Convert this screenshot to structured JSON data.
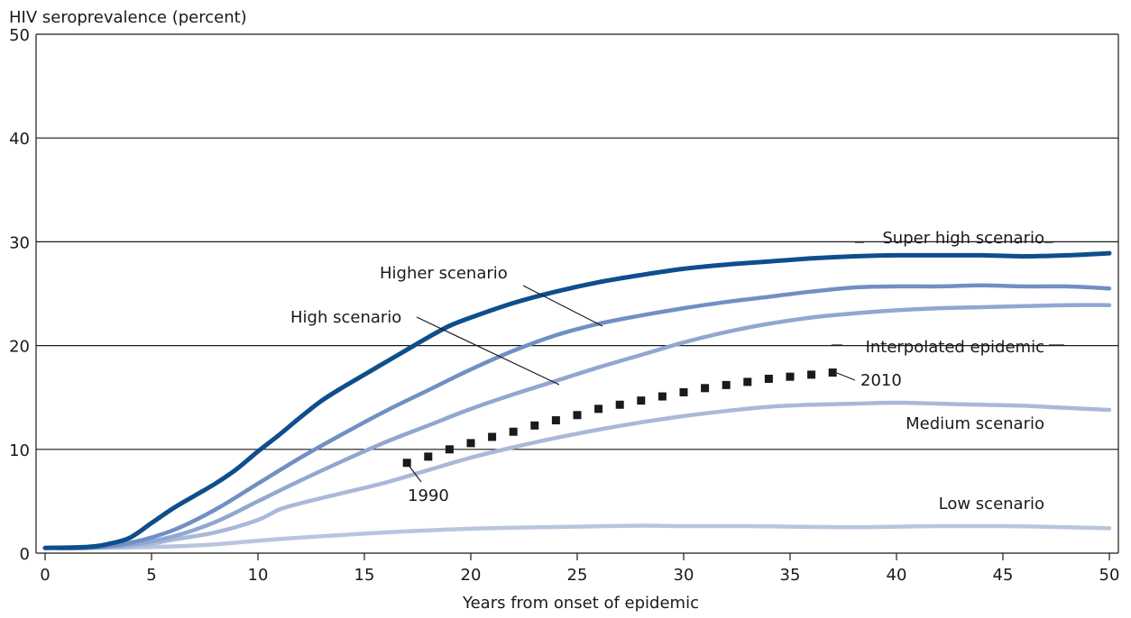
{
  "chart_data": {
    "type": "line",
    "ylabel": "HIV seroprevalence (percent)",
    "xlabel": "Years from onset of epidemic",
    "xlim": [
      0,
      50
    ],
    "ylim": [
      0,
      50
    ],
    "xticks": [
      0,
      5,
      10,
      15,
      20,
      25,
      30,
      35,
      40,
      45,
      50
    ],
    "yticks": [
      0,
      10,
      20,
      30,
      40,
      50
    ],
    "grid": "horizontal",
    "series": [
      {
        "name": "Low scenario",
        "color": "#b9c5df",
        "x": [
          0,
          2,
          4,
          6,
          8,
          10,
          12,
          14,
          16,
          18,
          20,
          22,
          25,
          28,
          30,
          33,
          35,
          38,
          40,
          42,
          45,
          48,
          50
        ],
        "y": [
          0.5,
          0.5,
          0.55,
          0.65,
          0.85,
          1.2,
          1.5,
          1.75,
          2.0,
          2.2,
          2.35,
          2.45,
          2.55,
          2.65,
          2.6,
          2.6,
          2.55,
          2.5,
          2.55,
          2.6,
          2.6,
          2.5,
          2.4
        ]
      },
      {
        "name": "Medium scenario",
        "color": "#a8b9da",
        "x": [
          0,
          2,
          4,
          5,
          6,
          8,
          10,
          11,
          12,
          14,
          16,
          18,
          20,
          22,
          24,
          26,
          28,
          30,
          32,
          34,
          36,
          38,
          40,
          42,
          44,
          46,
          48,
          50
        ],
        "y": [
          0.5,
          0.5,
          0.7,
          0.9,
          1.3,
          2.0,
          3.2,
          4.2,
          4.8,
          5.8,
          6.8,
          8.0,
          9.2,
          10.2,
          11.1,
          11.9,
          12.6,
          13.2,
          13.7,
          14.1,
          14.3,
          14.4,
          14.5,
          14.4,
          14.3,
          14.2,
          14.0,
          13.8
        ]
      },
      {
        "name": "High scenario",
        "color": "#91a7d1",
        "x": [
          0,
          2,
          4,
          6,
          8,
          10,
          12,
          14,
          16,
          18,
          20,
          22,
          24,
          26,
          28,
          30,
          32,
          34,
          36,
          38,
          40,
          42,
          44,
          46,
          48,
          50
        ],
        "y": [
          0.5,
          0.5,
          0.8,
          1.6,
          3.0,
          5.0,
          7.0,
          8.9,
          10.7,
          12.3,
          13.9,
          15.3,
          16.6,
          17.9,
          19.1,
          20.3,
          21.3,
          22.1,
          22.7,
          23.1,
          23.4,
          23.6,
          23.7,
          23.8,
          23.9,
          23.9
        ]
      },
      {
        "name": "Higher scenario",
        "color": "#7090c4",
        "x": [
          0,
          2,
          4,
          6,
          8,
          10,
          12,
          14,
          16,
          18,
          20,
          22,
          24,
          26,
          28,
          30,
          32,
          34,
          36,
          38,
          40,
          42,
          44,
          46,
          48,
          50
        ],
        "y": [
          0.5,
          0.5,
          1.0,
          2.2,
          4.2,
          6.7,
          9.2,
          11.5,
          13.7,
          15.7,
          17.7,
          19.5,
          21.0,
          22.1,
          22.9,
          23.6,
          24.2,
          24.7,
          25.2,
          25.6,
          25.7,
          25.7,
          25.8,
          25.7,
          25.7,
          25.5
        ]
      },
      {
        "name": "Super high scenario",
        "color": "#0e4e8c",
        "x": [
          0,
          2,
          3,
          4,
          5,
          6,
          7,
          8,
          9,
          10,
          11,
          12,
          13,
          14,
          15,
          16,
          17,
          18,
          19,
          20,
          22,
          24,
          26,
          28,
          30,
          32,
          34,
          36,
          38,
          40,
          42,
          44,
          46,
          48,
          50
        ],
        "y": [
          0.5,
          0.6,
          0.9,
          1.5,
          2.9,
          4.3,
          5.5,
          6.7,
          8.1,
          9.8,
          11.4,
          13.1,
          14.7,
          16.0,
          17.2,
          18.4,
          19.6,
          20.8,
          21.9,
          22.7,
          24.1,
          25.2,
          26.1,
          26.8,
          27.4,
          27.8,
          28.1,
          28.4,
          28.6,
          28.7,
          28.7,
          28.7,
          28.6,
          28.7,
          28.9
        ]
      }
    ],
    "interpolated_epidemic": {
      "name": "Interpolated epidemic",
      "color": "#1a1a1a",
      "x": [
        17,
        18,
        19,
        20,
        21,
        22,
        23,
        24,
        25,
        26,
        27,
        28,
        29,
        30,
        31,
        32,
        33,
        34,
        35,
        36,
        37
      ],
      "y": [
        8.7,
        9.3,
        10.0,
        10.6,
        11.2,
        11.7,
        12.3,
        12.8,
        13.3,
        13.9,
        14.3,
        14.7,
        15.1,
        15.5,
        15.9,
        16.2,
        16.5,
        16.8,
        17.0,
        17.2,
        17.4
      ]
    },
    "annotations": {
      "start_year": "1990",
      "end_year": "2010"
    }
  }
}
